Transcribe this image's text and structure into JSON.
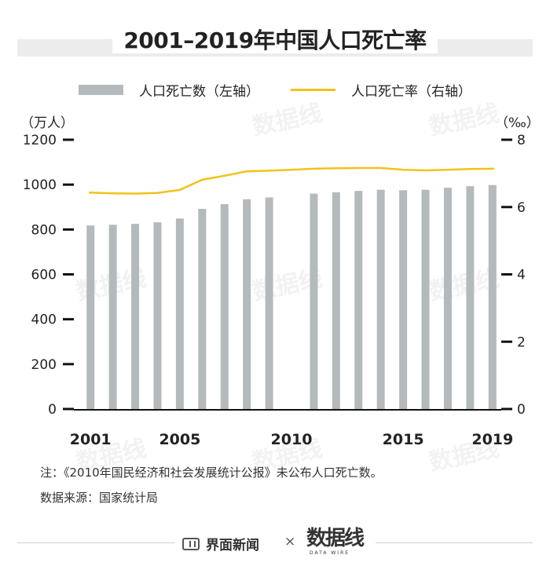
{
  "title": "2001–2019年中国人口死亡率",
  "legend": {
    "bars_label": "人口死亡数（左轴）",
    "line_label": "人口死亡率（右轴）"
  },
  "units": {
    "left": "（万人）",
    "right": "（‰）"
  },
  "notes": {
    "note": "注：《2010年国民经济和社会发展统计公报》未公布人口死亡数。",
    "source": "数据来源：国家统计局"
  },
  "footer": {
    "brand1": "界面新闻",
    "times": "×",
    "brand2": "数据线",
    "brand2_sub": "DATA WIRE"
  },
  "watermark": "数据线",
  "colors": {
    "bar": "#b4babb",
    "line": "#f2c21b",
    "axis": "#111111"
  },
  "chart_data": {
    "type": "bar",
    "title": "2001–2019年中国人口死亡率",
    "xlabel": "",
    "ylabel": "（万人）",
    "y2label": "（‰）",
    "ylim": [
      0,
      1200
    ],
    "y2lim": [
      0,
      8
    ],
    "yticks": [
      0,
      200,
      400,
      600,
      800,
      1000,
      1200
    ],
    "y2ticks": [
      0,
      2,
      4,
      6,
      8
    ],
    "xtick_labels": [
      "2001",
      "2005",
      "2010",
      "2015",
      "2019"
    ],
    "categories": [
      "2001",
      "2002",
      "2003",
      "2004",
      "2005",
      "2006",
      "2007",
      "2008",
      "2009",
      "2010",
      "2011",
      "2012",
      "2013",
      "2014",
      "2015",
      "2016",
      "2017",
      "2018",
      "2019"
    ],
    "series": [
      {
        "name": "人口死亡数（左轴）",
        "type": "bar",
        "axis": "left",
        "values": [
          818,
          821,
          825,
          832,
          849,
          892,
          913,
          935,
          943,
          null,
          960,
          966,
          972,
          977,
          975,
          977,
          986,
          993,
          998
        ]
      },
      {
        "name": "人口死亡率（右轴）",
        "type": "line",
        "axis": "right",
        "values": [
          6.43,
          6.41,
          6.4,
          6.42,
          6.51,
          6.81,
          6.93,
          7.06,
          7.08,
          7.11,
          7.14,
          7.15,
          7.16,
          7.16,
          7.11,
          7.09,
          7.11,
          7.13,
          7.14
        ]
      }
    ]
  }
}
